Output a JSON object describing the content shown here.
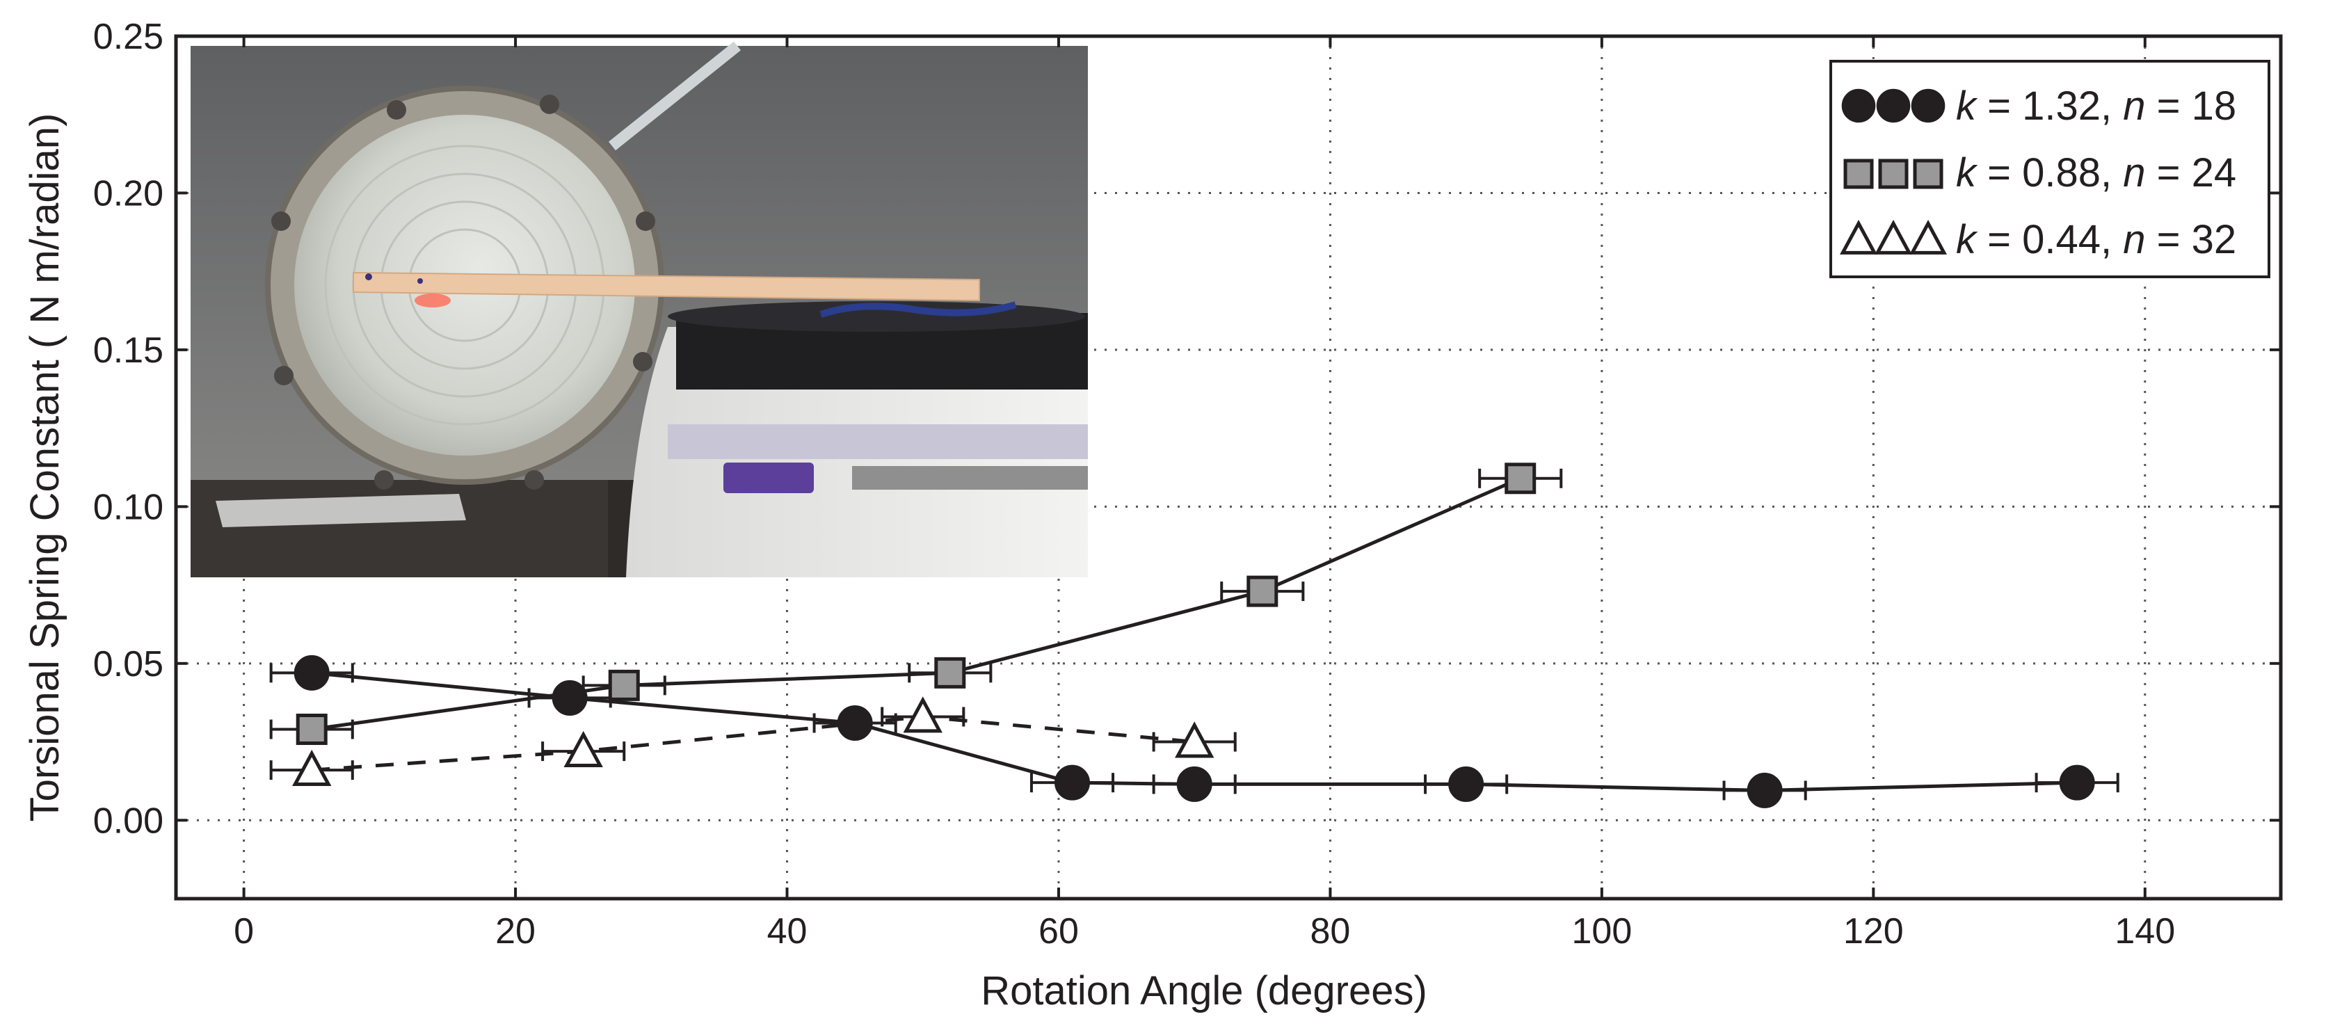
{
  "chart_data": {
    "type": "scatter",
    "xlabel": "Rotation Angle (degrees)",
    "ylabel": "Torsional Spring Constant ( N m/radian)",
    "xlim": [
      -5,
      150
    ],
    "ylim": [
      -0.025,
      0.25
    ],
    "x_ticks": [
      "0",
      "20",
      "40",
      "60",
      "80",
      "100",
      "120",
      "140"
    ],
    "y_ticks": [
      "0.00",
      "0.05",
      "0.10",
      "0.15",
      "0.20",
      "0.25"
    ],
    "grid": true,
    "legend_position": "top-right",
    "inset_image": "photo of circular flexure test rig with wooden stick lever resting on a scale",
    "series": [
      {
        "name": "k = 1.32, n = 18",
        "legend_k": "1.32",
        "legend_n": "18",
        "marker": "circle",
        "line_style": "solid",
        "color": "#231f20",
        "points": [
          {
            "x": 5,
            "y": 0.047,
            "xerr": 3
          },
          {
            "x": 24,
            "y": 0.039,
            "xerr": 3
          },
          {
            "x": 45,
            "y": 0.031,
            "xerr": 3
          },
          {
            "x": 61,
            "y": 0.012,
            "xerr": 3
          },
          {
            "x": 70,
            "y": 0.0115,
            "xerr": 3
          },
          {
            "x": 90,
            "y": 0.0115,
            "xerr": 3
          },
          {
            "x": 112,
            "y": 0.0095,
            "xerr": 3
          },
          {
            "x": 135,
            "y": 0.012,
            "xerr": 3
          }
        ]
      },
      {
        "name": "k = 0.88, n = 24",
        "legend_k": "0.88",
        "legend_n": "24",
        "marker": "square",
        "line_style": "solid",
        "color": "#999999",
        "points": [
          {
            "x": 5,
            "y": 0.029,
            "xerr": 3
          },
          {
            "x": 28,
            "y": 0.043,
            "xerr": 3
          },
          {
            "x": 52,
            "y": 0.047,
            "xerr": 3
          },
          {
            "x": 75,
            "y": 0.073,
            "xerr": 3
          },
          {
            "x": 94,
            "y": 0.109,
            "xerr": 3
          }
        ]
      },
      {
        "name": "k = 0.44, n = 32",
        "legend_k": "0.44",
        "legend_n": "32",
        "marker": "triangle",
        "line_style": "dashed",
        "color": "#ffffff",
        "points": [
          {
            "x": 5,
            "y": 0.016,
            "xerr": 3
          },
          {
            "x": 25,
            "y": 0.022,
            "xerr": 3
          },
          {
            "x": 50,
            "y": 0.033,
            "xerr": 3
          },
          {
            "x": 70,
            "y": 0.025,
            "xerr": 3
          }
        ]
      }
    ]
  }
}
